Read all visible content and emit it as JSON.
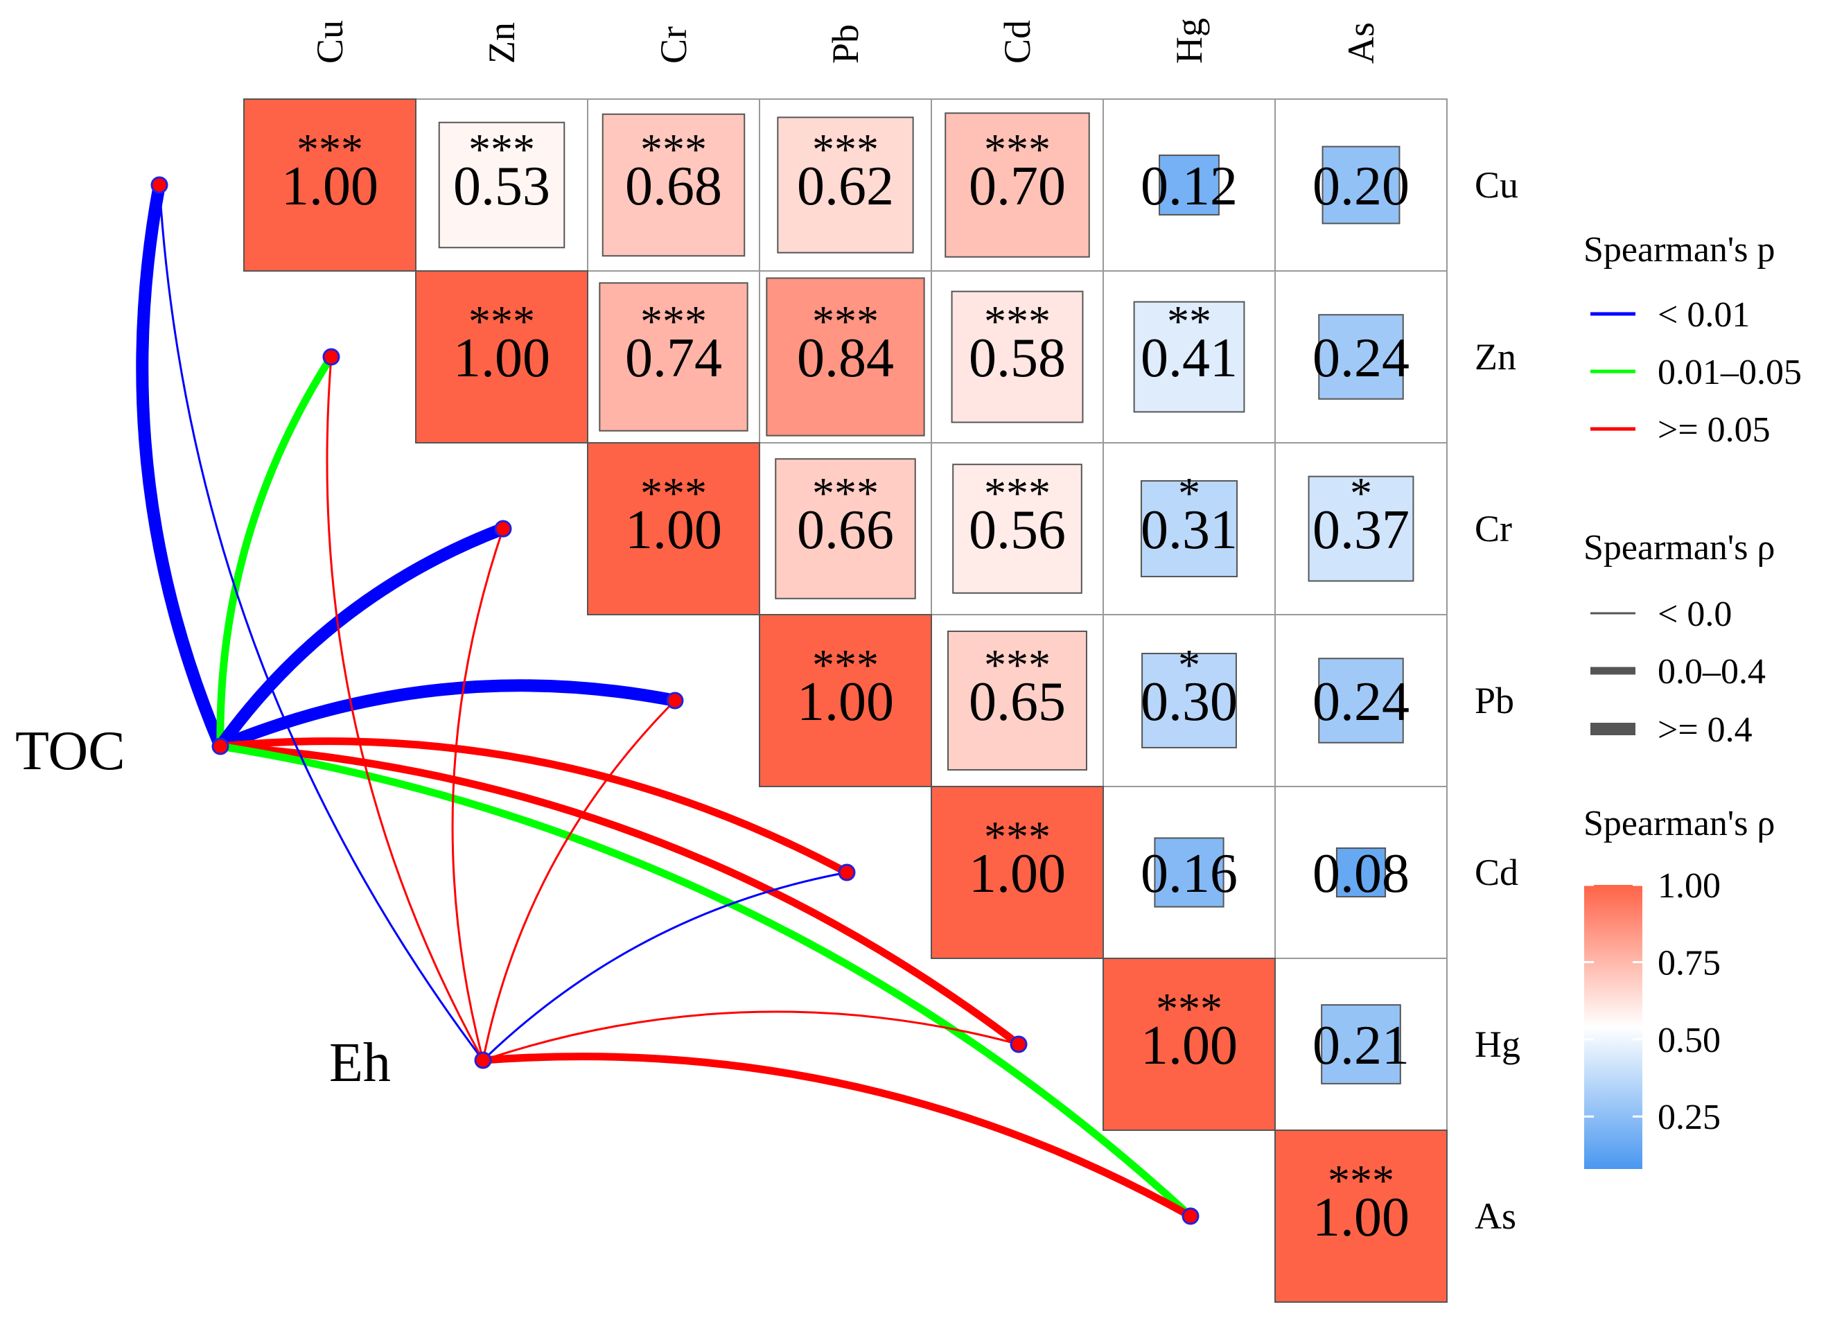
{
  "chart_data": {
    "type": "heatmap",
    "variables": [
      "Cu",
      "Zn",
      "Cr",
      "Pb",
      "Cd",
      "Hg",
      "As"
    ],
    "cells": [
      {
        "row": "Cu",
        "col": "Cu",
        "label": "1.00",
        "value": 1.0,
        "stars": "***"
      },
      {
        "row": "Cu",
        "col": "Zn",
        "label": "0.53",
        "value": 0.53,
        "stars": "***"
      },
      {
        "row": "Cu",
        "col": "Cr",
        "label": "0.68",
        "value": 0.68,
        "stars": "***"
      },
      {
        "row": "Cu",
        "col": "Pb",
        "label": "0.62",
        "value": 0.62,
        "stars": "***"
      },
      {
        "row": "Cu",
        "col": "Cd",
        "label": "0.70",
        "value": 0.7,
        "stars": "***"
      },
      {
        "row": "Cu",
        "col": "Hg",
        "label": "0.12",
        "value": 0.12,
        "stars": ""
      },
      {
        "row": "Cu",
        "col": "As",
        "label": "0.20",
        "value": 0.2,
        "stars": ""
      },
      {
        "row": "Zn",
        "col": "Zn",
        "label": "1.00",
        "value": 1.0,
        "stars": "***"
      },
      {
        "row": "Zn",
        "col": "Cr",
        "label": "0.74",
        "value": 0.74,
        "stars": "***"
      },
      {
        "row": "Zn",
        "col": "Pb",
        "label": "0.84",
        "value": 0.84,
        "stars": "***"
      },
      {
        "row": "Zn",
        "col": "Cd",
        "label": "0.58",
        "value": 0.58,
        "stars": "***"
      },
      {
        "row": "Zn",
        "col": "Hg",
        "label": "0.41",
        "value": 0.41,
        "stars": "**"
      },
      {
        "row": "Zn",
        "col": "As",
        "label": "0.24",
        "value": 0.24,
        "stars": ""
      },
      {
        "row": "Cr",
        "col": "Cr",
        "label": "1.00",
        "value": 1.0,
        "stars": "***"
      },
      {
        "row": "Cr",
        "col": "Pb",
        "label": "0.66",
        "value": 0.66,
        "stars": "***"
      },
      {
        "row": "Cr",
        "col": "Cd",
        "label": "0.56",
        "value": 0.56,
        "stars": "***"
      },
      {
        "row": "Cr",
        "col": "Hg",
        "label": "0.31",
        "value": 0.31,
        "stars": "*"
      },
      {
        "row": "Cr",
        "col": "As",
        "label": "0.37",
        "value": 0.37,
        "stars": "*"
      },
      {
        "row": "Pb",
        "col": "Pb",
        "label": "1.00",
        "value": 1.0,
        "stars": "***"
      },
      {
        "row": "Pb",
        "col": "Cd",
        "label": "0.65",
        "value": 0.65,
        "stars": "***"
      },
      {
        "row": "Pb",
        "col": "Hg",
        "label": "0.30",
        "value": 0.3,
        "stars": "*"
      },
      {
        "row": "Pb",
        "col": "As",
        "label": "0.24",
        "value": 0.24,
        "stars": ""
      },
      {
        "row": "Cd",
        "col": "Cd",
        "label": "1.00",
        "value": 1.0,
        "stars": "***"
      },
      {
        "row": "Cd",
        "col": "Hg",
        "label": "0.16",
        "value": 0.16,
        "stars": ""
      },
      {
        "row": "Cd",
        "col": "As",
        "label": "0.08",
        "value": 0.08,
        "stars": ""
      },
      {
        "row": "Hg",
        "col": "Hg",
        "label": "1.00",
        "value": 1.0,
        "stars": "***"
      },
      {
        "row": "Hg",
        "col": "As",
        "label": "0.21",
        "value": 0.21,
        "stars": ""
      },
      {
        "row": "As",
        "col": "As",
        "label": "1.00",
        "value": 1.0,
        "stars": "***"
      }
    ],
    "env_factors": [
      "TOC",
      "Eh"
    ],
    "links": [
      {
        "from": "TOC",
        "to": "Cu",
        "p_class": "< 0.01",
        "r_class": ">= 0.4"
      },
      {
        "from": "TOC",
        "to": "Zn",
        "p_class": "0.01–0.05",
        "r_class": "0.0–0.4"
      },
      {
        "from": "TOC",
        "to": "Cr",
        "p_class": "< 0.01",
        "r_class": ">= 0.4"
      },
      {
        "from": "TOC",
        "to": "Pb",
        "p_class": "< 0.01",
        "r_class": ">= 0.4"
      },
      {
        "from": "TOC",
        "to": "Cd",
        "p_class": ">= 0.05",
        "r_class": "0.0–0.4"
      },
      {
        "from": "TOC",
        "to": "Hg",
        "p_class": ">= 0.05",
        "r_class": "0.0–0.4"
      },
      {
        "from": "TOC",
        "to": "As",
        "p_class": "0.01–0.05",
        "r_class": "0.0–0.4"
      },
      {
        "from": "Eh",
        "to": "Cu",
        "p_class": "< 0.01",
        "r_class": "< 0.0"
      },
      {
        "from": "Eh",
        "to": "Zn",
        "p_class": ">= 0.05",
        "r_class": "< 0.0"
      },
      {
        "from": "Eh",
        "to": "Cr",
        "p_class": ">= 0.05",
        "r_class": "< 0.0"
      },
      {
        "from": "Eh",
        "to": "Pb",
        "p_class": ">= 0.05",
        "r_class": "< 0.0"
      },
      {
        "from": "Eh",
        "to": "Cd",
        "p_class": "< 0.01",
        "r_class": "< 0.0"
      },
      {
        "from": "Eh",
        "to": "Hg",
        "p_class": ">= 0.05",
        "r_class": "< 0.0"
      },
      {
        "from": "Eh",
        "to": "As",
        "p_class": ">= 0.05",
        "r_class": "0.0–0.4"
      }
    ],
    "legend_p": {
      "title": "Spearman's p",
      "items": [
        {
          "label": "< 0.01",
          "color": "#0000ff"
        },
        {
          "label": "0.01–0.05",
          "color": "#00ff00"
        },
        {
          "label": ">= 0.05",
          "color": "#ff0000"
        }
      ]
    },
    "legend_r": {
      "title": "Spearman's ρ",
      "items": [
        {
          "label": "< 0.0"
        },
        {
          "label": "0.0–0.4"
        },
        {
          "label": ">= 0.4"
        }
      ]
    },
    "legend_color": {
      "title": "Spearman's ρ",
      "ticks": [
        "1.00",
        "0.75",
        "0.50",
        "0.25"
      ],
      "tick_values": [
        1.0,
        0.75,
        0.5,
        0.25
      ],
      "range": [
        0.08,
        1.0
      ]
    },
    "colors": {
      "high": "#ff6347",
      "mid": "#ffffff",
      "low": "#4a98f0",
      "node_fill": "#ff0000",
      "node_stroke": "#2222dd",
      "cell_border": "#999999"
    }
  }
}
